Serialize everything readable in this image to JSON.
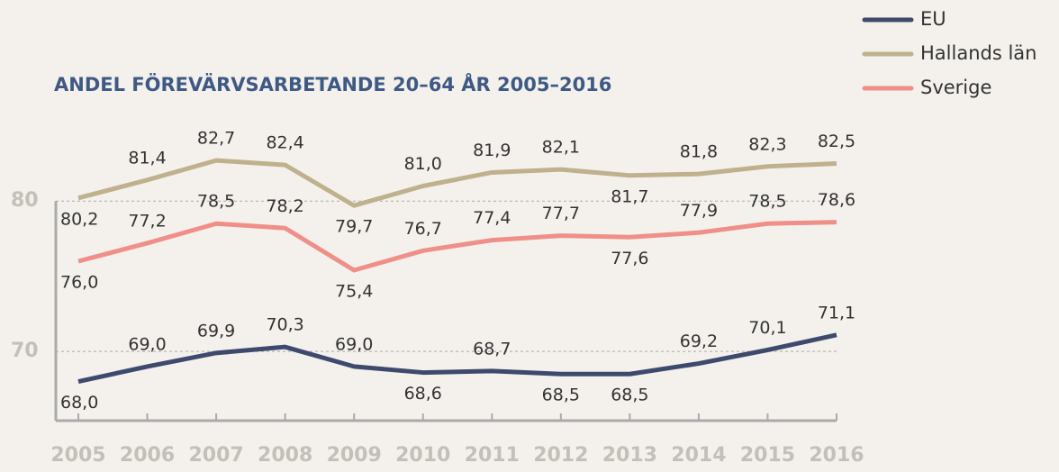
{
  "chart_data": {
    "type": "line",
    "title": "ANDEL FÖREVÄRVSARBETANDE 20–64 ÅR 2005–2016",
    "categories": [
      "2005",
      "2006",
      "2007",
      "2008",
      "2009",
      "2010",
      "2011",
      "2012",
      "2013",
      "2014",
      "2015",
      "2016"
    ],
    "series": [
      {
        "name": "EU",
        "color": "#3e4a6d",
        "values": [
          68.0,
          69.0,
          69.9,
          70.3,
          69.0,
          68.6,
          68.7,
          68.5,
          68.5,
          69.2,
          70.1,
          71.1
        ],
        "value_labels": [
          "68,0",
          "69,0",
          "69,9",
          "70,3",
          "69,0",
          "68,6",
          "68,7",
          "68,5",
          "68,5",
          "69,2",
          "70,1",
          "71,1"
        ]
      },
      {
        "name": "Hallands län",
        "color": "#bfb18d",
        "values": [
          80.2,
          81.4,
          82.7,
          82.4,
          79.7,
          81.0,
          81.9,
          82.1,
          81.7,
          81.8,
          82.3,
          82.5
        ],
        "value_labels": [
          "80,2",
          "81,4",
          "82,7",
          "82,4",
          "79,7",
          "81,0",
          "81,9",
          "82,1",
          "81,7",
          "81,8",
          "82,3",
          "82,5"
        ]
      },
      {
        "name": "Sverige",
        "color": "#f08f89",
        "values": [
          76.0,
          77.2,
          78.5,
          78.2,
          75.4,
          76.7,
          77.4,
          77.7,
          77.6,
          77.9,
          78.5,
          78.6
        ],
        "value_labels": [
          "76,0",
          "77,2",
          "78,5",
          "78,2",
          "75,4",
          "76,7",
          "77,4",
          "77,7",
          "77,6",
          "77,9",
          "78,5",
          "78,6"
        ]
      }
    ],
    "ylim": [
      65.4,
      86
    ],
    "yticks": [
      70,
      80
    ],
    "grid": true,
    "legend": "top-right"
  }
}
